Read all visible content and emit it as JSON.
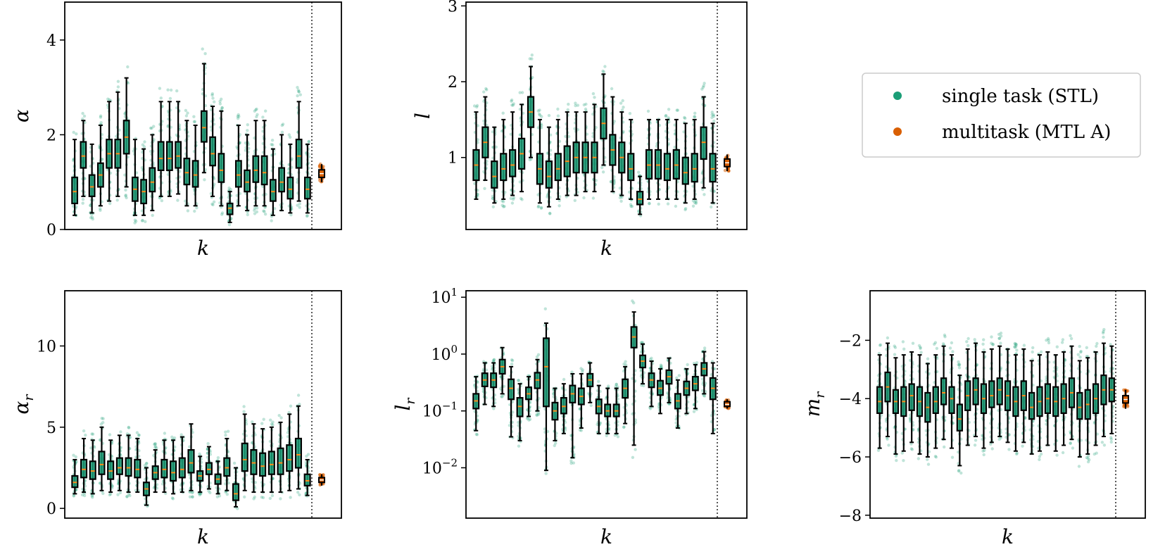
{
  "figure": {
    "legend": {
      "entries": [
        {
          "label": "single task (STL)",
          "color": "#1b9e77"
        },
        {
          "label": "multitask (MTL A)",
          "color": "#d95f02"
        }
      ],
      "placement": "right, upper row, third column"
    }
  },
  "chart_data": [
    {
      "type": "box",
      "title": "",
      "xlabel": "k",
      "ylabel": "α",
      "yscale": "linear",
      "ylim": [
        0,
        4.8
      ],
      "yticks": [
        0,
        2,
        4
      ],
      "ytick_labels": [
        "0",
        "2",
        "4"
      ],
      "divider_after_box": 25,
      "series": [
        {
          "name": "single task (STL)",
          "color": "#1b9e77",
          "medians": [
            0.8,
            1.55,
            0.9,
            1.15,
            1.6,
            1.6,
            1.95,
            0.85,
            0.8,
            1.0,
            1.5,
            1.5,
            1.55,
            1.2,
            1.15,
            2.15,
            1.6,
            1.25,
            0.45,
            1.15,
            1.0,
            1.25,
            1.2,
            0.8,
            1.0,
            0.85,
            1.55,
            0.85
          ],
          "q1": [
            0.55,
            1.3,
            0.7,
            0.9,
            1.3,
            1.3,
            1.6,
            0.6,
            0.55,
            0.8,
            1.25,
            1.25,
            1.3,
            0.95,
            0.9,
            1.85,
            1.35,
            1.0,
            0.32,
            0.9,
            0.8,
            1.0,
            0.95,
            0.6,
            0.8,
            0.65,
            1.3,
            0.65
          ],
          "q3": [
            1.1,
            1.85,
            1.15,
            1.4,
            1.9,
            1.9,
            2.3,
            1.1,
            1.05,
            1.3,
            1.85,
            1.85,
            1.85,
            1.5,
            1.45,
            2.5,
            1.95,
            1.6,
            0.55,
            1.45,
            1.25,
            1.55,
            1.55,
            1.05,
            1.3,
            1.1,
            1.9,
            1.1
          ],
          "whisker_low": [
            0.3,
            0.7,
            0.35,
            0.5,
            0.6,
            0.7,
            0.9,
            0.3,
            0.3,
            0.4,
            0.7,
            0.7,
            0.75,
            0.5,
            0.5,
            1.2,
            0.7,
            0.5,
            0.15,
            0.5,
            0.4,
            0.5,
            0.5,
            0.3,
            0.4,
            0.35,
            0.6,
            0.35
          ],
          "whisker_high": [
            1.9,
            2.3,
            1.8,
            2.2,
            2.7,
            2.9,
            3.2,
            1.9,
            1.7,
            2.0,
            2.7,
            2.7,
            2.7,
            2.3,
            2.2,
            3.5,
            2.6,
            2.5,
            0.8,
            2.2,
            2.0,
            2.3,
            2.3,
            1.7,
            2.0,
            1.8,
            2.7,
            1.8
          ]
        },
        {
          "name": "multitask (MTL A)",
          "color": "#d95f02",
          "median": 1.18,
          "q1": 1.1,
          "q3": 1.26,
          "whisker_low": 1.0,
          "whisker_high": 1.38
        }
      ]
    },
    {
      "type": "box",
      "title": "",
      "xlabel": "k",
      "ylabel": "l",
      "yscale": "linear",
      "ylim": [
        0.05,
        3.05
      ],
      "yticks": [
        1,
        2,
        3
      ],
      "ytick_labels": [
        "1",
        "2",
        "3"
      ],
      "divider_after_box": 25,
      "series": [
        {
          "name": "single task (STL)",
          "color": "#1b9e77",
          "medians": [
            0.9,
            1.2,
            0.75,
            0.85,
            0.9,
            1.05,
            1.6,
            0.85,
            0.75,
            0.85,
            0.95,
            1.0,
            1.0,
            1.0,
            1.45,
            1.1,
            1.0,
            0.85,
            0.45,
            0.9,
            0.9,
            0.85,
            0.9,
            0.8,
            0.85,
            1.2,
            0.85
          ],
          "q1": [
            0.7,
            1.0,
            0.6,
            0.7,
            0.75,
            0.85,
            1.4,
            0.65,
            0.6,
            0.7,
            0.75,
            0.8,
            0.8,
            0.8,
            1.25,
            0.9,
            0.8,
            0.7,
            0.38,
            0.72,
            0.72,
            0.7,
            0.72,
            0.65,
            0.68,
            0.98,
            0.68
          ],
          "q3": [
            1.1,
            1.4,
            0.95,
            1.05,
            1.1,
            1.25,
            1.8,
            1.05,
            0.95,
            1.05,
            1.15,
            1.2,
            1.2,
            1.2,
            1.65,
            1.3,
            1.2,
            1.05,
            0.55,
            1.1,
            1.1,
            1.05,
            1.1,
            1.0,
            1.05,
            1.4,
            1.05
          ],
          "whisker_low": [
            0.45,
            0.7,
            0.4,
            0.45,
            0.5,
            0.55,
            1.0,
            0.4,
            0.35,
            0.45,
            0.5,
            0.5,
            0.55,
            0.55,
            0.9,
            0.55,
            0.5,
            0.45,
            0.25,
            0.45,
            0.45,
            0.45,
            0.45,
            0.4,
            0.45,
            0.6,
            0.4
          ],
          "whisker_high": [
            1.6,
            1.8,
            1.4,
            1.5,
            1.6,
            1.7,
            2.2,
            1.5,
            1.4,
            1.5,
            1.6,
            1.6,
            1.6,
            1.7,
            2.1,
            1.8,
            1.6,
            1.5,
            0.75,
            1.5,
            1.5,
            1.5,
            1.5,
            1.45,
            1.5,
            1.8,
            1.45
          ]
        },
        {
          "name": "multitask (MTL A)",
          "color": "#d95f02",
          "median": 0.93,
          "q1": 0.88,
          "q3": 0.98,
          "whisker_low": 0.82,
          "whisker_high": 1.04
        }
      ]
    },
    {
      "type": "box",
      "title": "",
      "xlabel": "k",
      "ylabel": "α_r",
      "yscale": "linear",
      "ylim": [
        -0.6,
        13.4
      ],
      "yticks": [
        0,
        5,
        10
      ],
      "ytick_labels": [
        "0",
        "5",
        "10"
      ],
      "divider_after_box": 26,
      "series": [
        {
          "name": "single task (STL)",
          "color": "#1b9e77",
          "medians": [
            1.6,
            2.4,
            2.3,
            2.7,
            2.3,
            2.5,
            2.5,
            2.4,
            1.2,
            2.2,
            2.4,
            2.2,
            2.4,
            2.8,
            2.0,
            2.4,
            1.8,
            2.5,
            0.9,
            3.0,
            2.8,
            2.6,
            2.7,
            2.8,
            3.0,
            3.3,
            1.7
          ],
          "q1": [
            1.3,
            1.9,
            1.8,
            2.1,
            1.8,
            2.1,
            2.0,
            1.9,
            0.8,
            1.8,
            1.9,
            1.7,
            1.9,
            2.2,
            1.7,
            2.1,
            1.5,
            2.0,
            0.5,
            2.3,
            2.1,
            2.0,
            2.1,
            2.1,
            2.3,
            2.5,
            1.4
          ],
          "q3": [
            2.0,
            3.0,
            2.9,
            3.5,
            2.9,
            3.1,
            3.1,
            3.0,
            1.6,
            2.6,
            3.0,
            2.9,
            3.1,
            3.6,
            2.3,
            2.8,
            2.1,
            3.1,
            1.5,
            4.0,
            3.6,
            3.4,
            3.5,
            3.7,
            3.9,
            4.3,
            2.1
          ],
          "whisker_low": [
            0.9,
            1.0,
            0.9,
            1.1,
            1.0,
            1.1,
            1.0,
            1.0,
            0.2,
            1.0,
            1.0,
            0.9,
            1.0,
            1.1,
            1.0,
            1.2,
            0.9,
            1.1,
            0.1,
            1.1,
            1.0,
            1.0,
            1.0,
            1.0,
            1.1,
            1.2,
            0.8
          ],
          "whisker_high": [
            3.0,
            4.3,
            4.2,
            5.0,
            4.2,
            4.5,
            4.5,
            4.3,
            2.5,
            3.6,
            4.2,
            4.2,
            4.4,
            5.2,
            3.2,
            3.8,
            2.9,
            4.3,
            2.5,
            5.8,
            5.2,
            4.9,
            5.0,
            5.3,
            5.8,
            6.3,
            3.0
          ]
        },
        {
          "name": "multitask (MTL A)",
          "color": "#d95f02",
          "median": 1.75,
          "q1": 1.6,
          "q3": 1.9,
          "whisker_low": 1.4,
          "whisker_high": 2.1
        }
      ]
    },
    {
      "type": "box",
      "title": "",
      "xlabel": "k",
      "ylabel": "l_r",
      "yscale": "log",
      "ylim": [
        0.0013,
        13
      ],
      "yticks": [
        0.01,
        0.1,
        1,
        10
      ],
      "ytick_labels": [
        [
          "10",
          "−2"
        ],
        [
          "10",
          "−1"
        ],
        [
          "10",
          "0"
        ],
        [
          "10",
          "1"
        ]
      ],
      "divider_after_box": 27,
      "series": [
        {
          "name": "single task (STL)",
          "color": "#1b9e77",
          "medians": [
            0.15,
            0.35,
            0.35,
            0.6,
            0.25,
            0.12,
            0.2,
            0.35,
            0.6,
            0.1,
            0.12,
            0.2,
            0.18,
            0.35,
            0.12,
            0.1,
            0.1,
            0.25,
            2.0,
            0.75,
            0.35,
            0.25,
            0.4,
            0.15,
            0.25,
            0.3,
            0.55,
            0.25
          ],
          "q1": [
            0.11,
            0.27,
            0.26,
            0.45,
            0.16,
            0.08,
            0.16,
            0.25,
            0.12,
            0.07,
            0.09,
            0.14,
            0.13,
            0.27,
            0.09,
            0.08,
            0.08,
            0.17,
            1.3,
            0.58,
            0.26,
            0.19,
            0.3,
            0.11,
            0.19,
            0.23,
            0.42,
            0.16
          ],
          "q3": [
            0.2,
            0.46,
            0.46,
            0.8,
            0.36,
            0.17,
            0.26,
            0.47,
            1.9,
            0.14,
            0.17,
            0.28,
            0.25,
            0.45,
            0.16,
            0.13,
            0.13,
            0.36,
            3.0,
            0.95,
            0.46,
            0.34,
            0.52,
            0.2,
            0.33,
            0.4,
            0.7,
            0.38
          ],
          "whisker_low": [
            0.045,
            0.13,
            0.12,
            0.2,
            0.035,
            0.03,
            0.08,
            0.1,
            0.009,
            0.03,
            0.04,
            0.015,
            0.05,
            0.14,
            0.04,
            0.04,
            0.04,
            0.06,
            0.025,
            0.3,
            0.12,
            0.09,
            0.14,
            0.05,
            0.09,
            0.11,
            0.2,
            0.04
          ],
          "whisker_high": [
            0.4,
            0.7,
            0.7,
            1.3,
            0.6,
            0.3,
            0.4,
            0.8,
            3.5,
            0.25,
            0.3,
            0.45,
            0.45,
            0.7,
            0.28,
            0.25,
            0.25,
            0.6,
            5.5,
            1.5,
            0.75,
            0.55,
            0.85,
            0.35,
            0.55,
            0.65,
            1.1,
            0.7
          ]
        },
        {
          "name": "multitask (MTL A)",
          "color": "#d95f02",
          "median": 0.13,
          "q1": 0.12,
          "q3": 0.145,
          "whisker_low": 0.11,
          "whisker_high": 0.16
        }
      ]
    },
    {
      "type": "box",
      "title": "",
      "xlabel": "k",
      "ylabel": "m_r",
      "yscale": "linear",
      "ylim": [
        -8.1,
        -0.3
      ],
      "yticks": [
        -8,
        -6,
        -4,
        -2
      ],
      "ytick_labels": [
        "−8",
        "−6",
        "−4",
        "−2"
      ],
      "divider_after_box": 30,
      "series": [
        {
          "name": "single task (STL)",
          "color": "#1b9e77",
          "medians": [
            -4.1,
            -3.6,
            -4.1,
            -4.1,
            -3.9,
            -4.1,
            -4.3,
            -4.1,
            -3.8,
            -4.0,
            -4.7,
            -3.9,
            -3.7,
            -4.0,
            -3.9,
            -3.7,
            -3.9,
            -4.1,
            -3.9,
            -4.3,
            -4.1,
            -4.0,
            -4.1,
            -4.0,
            -3.8,
            -4.3,
            -4.2,
            -4.0,
            -3.7,
            -3.7
          ],
          "q1": [
            -4.5,
            -4.1,
            -4.5,
            -4.6,
            -4.4,
            -4.6,
            -4.8,
            -4.5,
            -4.2,
            -4.5,
            -5.1,
            -4.4,
            -4.2,
            -4.5,
            -4.3,
            -4.2,
            -4.4,
            -4.6,
            -4.4,
            -4.7,
            -4.6,
            -4.5,
            -4.6,
            -4.5,
            -4.3,
            -4.7,
            -4.7,
            -4.5,
            -4.2,
            -4.1
          ],
          "q3": [
            -3.6,
            -3.1,
            -3.7,
            -3.6,
            -3.5,
            -3.6,
            -3.8,
            -3.6,
            -3.3,
            -3.6,
            -4.2,
            -3.4,
            -3.3,
            -3.5,
            -3.4,
            -3.3,
            -3.4,
            -3.6,
            -3.4,
            -3.8,
            -3.6,
            -3.5,
            -3.6,
            -3.5,
            -3.3,
            -3.8,
            -3.7,
            -3.5,
            -3.2,
            -3.3
          ],
          "whisker_low": [
            -5.7,
            -5.3,
            -5.9,
            -5.8,
            -5.5,
            -5.9,
            -6.0,
            -5.7,
            -5.4,
            -5.7,
            -6.3,
            -5.6,
            -5.3,
            -5.7,
            -5.5,
            -5.3,
            -5.5,
            -5.8,
            -5.5,
            -5.9,
            -5.8,
            -5.6,
            -5.8,
            -5.6,
            -5.4,
            -6.0,
            -5.9,
            -5.6,
            -5.3,
            -5.2
          ],
          "whisker_high": [
            -2.5,
            -2.1,
            -2.6,
            -2.5,
            -2.4,
            -2.5,
            -2.8,
            -2.5,
            -2.2,
            -2.5,
            -3.2,
            -2.3,
            -2.1,
            -2.4,
            -2.3,
            -2.2,
            -2.3,
            -2.5,
            -2.3,
            -2.7,
            -2.5,
            -2.4,
            -2.5,
            -2.4,
            -2.2,
            -2.7,
            -2.6,
            -2.4,
            -2.1,
            -2.2
          ]
        },
        {
          "name": "multitask (MTL A)",
          "color": "#d95f02",
          "median": -4.03,
          "q1": -4.15,
          "q3": -3.9,
          "whisker_low": -4.35,
          "whisker_high": -3.7
        }
      ]
    }
  ]
}
